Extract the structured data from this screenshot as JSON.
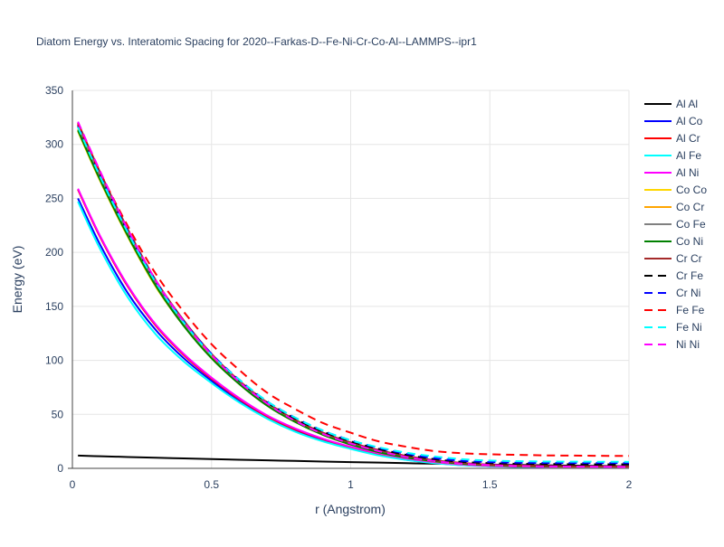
{
  "chart_data": {
    "type": "line",
    "title": "Diatom Energy vs. Interatomic Spacing for 2020--Farkas-D--Fe-Ni-Cr-Co-Al--LAMMPS--ipr1",
    "xlabel": "r (Angstrom)",
    "ylabel": "Energy (eV)",
    "xlim": [
      0,
      2
    ],
    "ylim": [
      0,
      350
    ],
    "xticks": [
      0,
      0.5,
      1,
      1.5,
      2
    ],
    "xtick_labels": [
      "0",
      "0.5",
      "1",
      "1.5",
      "2"
    ],
    "yticks": [
      0,
      50,
      100,
      150,
      200,
      250,
      300,
      350
    ],
    "ytick_labels": [
      "0",
      "50",
      "100",
      "150",
      "200",
      "250",
      "300",
      "350"
    ],
    "grid": true,
    "legend_position": "right",
    "x": [
      0.02,
      0.1,
      0.2,
      0.3,
      0.4,
      0.5,
      0.6,
      0.7,
      0.8,
      0.9,
      1.0,
      1.1,
      1.2,
      1.3,
      1.4,
      1.5,
      1.6,
      1.7,
      1.8,
      1.9,
      2.0
    ],
    "series": [
      {
        "name": "Al Al",
        "color": "#000000",
        "dash": "solid",
        "values": [
          11.8,
          11.2,
          10.5,
          9.8,
          9.2,
          8.6,
          8.0,
          7.4,
          6.9,
          6.3,
          5.8,
          5.3,
          4.8,
          4.3,
          3.9,
          3.5,
          3.1,
          2.8,
          2.5,
          2.2,
          2.0
        ]
      },
      {
        "name": "Al Co",
        "color": "#0000ff",
        "dash": "solid",
        "values": [
          250,
          207,
          162,
          128,
          102,
          81,
          62,
          47,
          35,
          26,
          18.5,
          12.5,
          8.0,
          5.0,
          3.0,
          2.0,
          1.4,
          1.1,
          1.0,
          0.9,
          0.8
        ]
      },
      {
        "name": "Al Cr",
        "color": "#ff0000",
        "dash": "solid",
        "values": [
          258,
          214,
          168,
          132,
          105,
          83,
          64,
          48,
          36,
          27,
          19.5,
          13.5,
          8.8,
          5.5,
          3.4,
          2.2,
          1.6,
          1.2,
          1.1,
          1.0,
          0.9
        ]
      },
      {
        "name": "Al Fe",
        "color": "#00ffff",
        "dash": "solid",
        "values": [
          247,
          203,
          158,
          124,
          99,
          79,
          61,
          46,
          34,
          25,
          18,
          12,
          7.8,
          4.8,
          2.9,
          1.9,
          1.4,
          1.1,
          1.0,
          0.9,
          0.8
        ]
      },
      {
        "name": "Al Ni",
        "color": "#ff00ff",
        "dash": "solid",
        "values": [
          259,
          215,
          169,
          133,
          106,
          84,
          65,
          49,
          37,
          27.5,
          20,
          14,
          9.2,
          5.8,
          3.6,
          2.3,
          1.7,
          1.3,
          1.1,
          1.0,
          0.9
        ]
      },
      {
        "name": "Co Co",
        "color": "#ffd700",
        "dash": "solid",
        "values": [
          312,
          266,
          214,
          168,
          132,
          102,
          78,
          58,
          43,
          31,
          22,
          15,
          10,
          6.5,
          4.2,
          2.8,
          2.0,
          1.6,
          1.4,
          1.3,
          1.2
        ]
      },
      {
        "name": "Co Cr",
        "color": "#ffa500",
        "dash": "solid",
        "values": [
          314,
          268,
          216,
          170,
          133,
          103,
          79,
          59,
          44,
          32,
          23,
          16,
          10.5,
          6.8,
          4.4,
          3.0,
          2.2,
          1.7,
          1.5,
          1.4,
          1.3
        ]
      },
      {
        "name": "Co Fe",
        "color": "#808080",
        "dash": "solid",
        "values": [
          316,
          270,
          218,
          172,
          135,
          105,
          80,
          60,
          45,
          33,
          23.5,
          16.5,
          11,
          7.2,
          4.7,
          3.2,
          2.4,
          1.9,
          1.6,
          1.5,
          1.4
        ]
      },
      {
        "name": "Co Ni",
        "color": "#008000",
        "dash": "solid",
        "values": [
          313,
          267,
          215,
          169,
          132,
          102,
          78,
          58,
          43,
          31,
          22,
          15,
          10,
          6.6,
          4.3,
          2.9,
          2.1,
          1.7,
          1.5,
          1.4,
          1.3
        ]
      },
      {
        "name": "Cr Cr",
        "color": "#a52a2a",
        "dash": "solid",
        "values": [
          320,
          274,
          221,
          174,
          137,
          106,
          81,
          61,
          45,
          33,
          24,
          17,
          11.5,
          7.5,
          5.0,
          3.4,
          2.6,
          2.1,
          1.8,
          1.7,
          1.6
        ]
      },
      {
        "name": "Cr Fe",
        "color": "#000000",
        "dash": "dash",
        "values": [
          318,
          272,
          219,
          173,
          136,
          105,
          81,
          61,
          46,
          34,
          25,
          18,
          12.5,
          8.5,
          6.0,
          4.8,
          4.2,
          4.0,
          3.9,
          3.8,
          3.8
        ]
      },
      {
        "name": "Cr Ni",
        "color": "#0000ff",
        "dash": "dash",
        "values": [
          317,
          271,
          219,
          173,
          136,
          106,
          82,
          62,
          47,
          35,
          26,
          19,
          13.5,
          9.5,
          7.0,
          5.8,
          5.2,
          5.0,
          4.9,
          4.9,
          4.9
        ]
      },
      {
        "name": "Fe Fe",
        "color": "#ff0000",
        "dash": "dash",
        "values": [
          319,
          274,
          224,
          180,
          145,
          115,
          91,
          70,
          55,
          42,
          33,
          25,
          20,
          16,
          14,
          13,
          12.5,
          12,
          11.8,
          11.6,
          11.5
        ]
      },
      {
        "name": "Fe Ni",
        "color": "#00ffff",
        "dash": "dash",
        "values": [
          316,
          270,
          218,
          172,
          135,
          105,
          82,
          62,
          47,
          35,
          26,
          19.5,
          14.5,
          11,
          8.5,
          7.2,
          6.6,
          6.3,
          6.2,
          6.1,
          6.0
        ]
      },
      {
        "name": "Ni Ni",
        "color": "#ff00ff",
        "dash": "dash",
        "values": [
          321,
          275,
          221,
          174,
          136,
          105,
          80,
          60,
          44,
          32,
          23,
          16,
          10.5,
          6.8,
          4.4,
          3.0,
          2.2,
          1.8,
          1.6,
          1.5,
          1.4
        ]
      }
    ]
  }
}
